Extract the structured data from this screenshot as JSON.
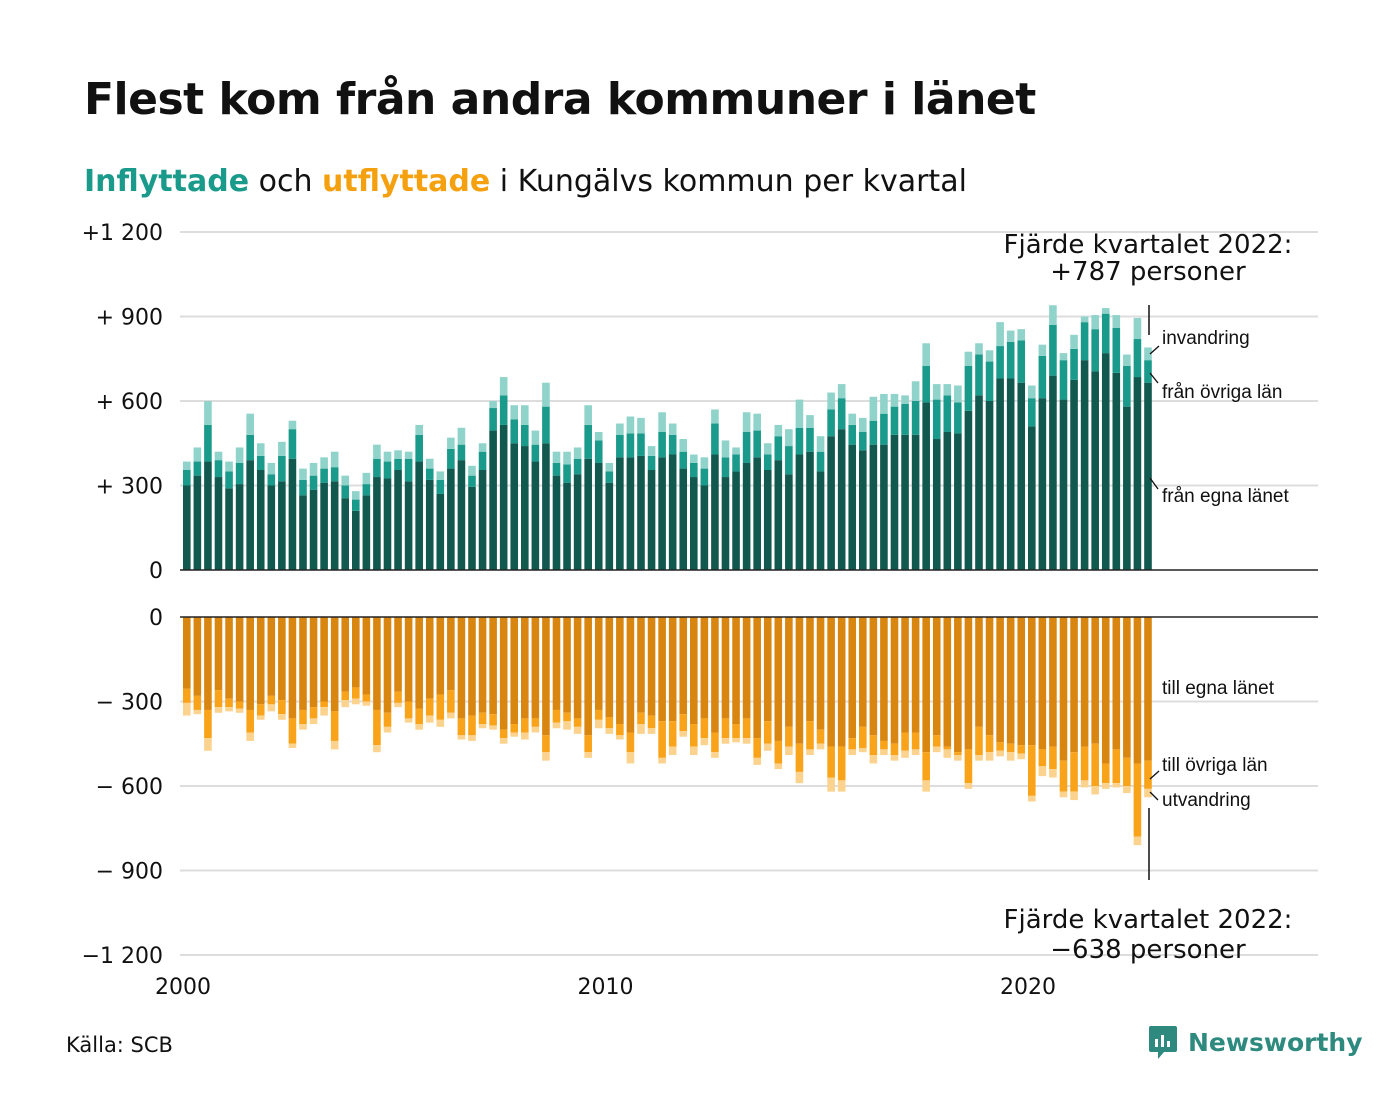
{
  "title": "Flest kom från andra kommuner i länet",
  "subtitle": {
    "in_word": "Inflyttade",
    "mid1": " och ",
    "out_word": "utflyttade",
    "rest": " i Kungälvs kommun per kvartal"
  },
  "source": "Källa: SCB",
  "logo": {
    "text": "Newsworthy",
    "icon": "newsworthy-chart-icon"
  },
  "colors": {
    "in_own": "#11584f",
    "in_other": "#1a9a8a",
    "in_immig": "#8fd3ca",
    "out_own": "#d98610",
    "out_other": "#f9a31a",
    "out_emig": "#fbd38e",
    "grid": "#dddddd",
    "axis": "#222222"
  },
  "annotations": {
    "top_line1": "Fjärde kvartalet 2022:",
    "top_line2": "+787 personer",
    "bottom_line1": "Fjärde kvartalet 2022:",
    "bottom_line2": "−638 personer"
  },
  "chart_data": {
    "type": "bar",
    "stacked": true,
    "x_ticks": [
      2000,
      2010,
      2020
    ],
    "x_tick_labels": [
      "2000",
      "2010",
      "2020"
    ],
    "x_start": 2000,
    "top_panel": {
      "y_ticks": [
        0,
        300,
        600,
        900,
        1200
      ],
      "y_tick_labels": [
        "0",
        "+  300",
        "+  600",
        "+  900",
        "+1 200"
      ],
      "ylim": [
        0,
        1200
      ],
      "series_labels": [
        "från egna länet",
        "från övriga län",
        "invandring"
      ]
    },
    "bottom_panel": {
      "y_ticks": [
        0,
        -300,
        -600,
        -900,
        -1200
      ],
      "y_tick_labels": [
        "0",
        "−  300",
        "−  600",
        "−  900",
        "−1 200"
      ],
      "ylim": [
        -1200,
        0
      ],
      "series_labels": [
        "till egna länet",
        "till övriga län",
        "utvandring"
      ]
    },
    "in_own": [
      300,
      335,
      385,
      330,
      290,
      305,
      390,
      355,
      300,
      315,
      395,
      265,
      285,
      310,
      315,
      255,
      210,
      265,
      330,
      325,
      355,
      315,
      385,
      320,
      270,
      360,
      390,
      295,
      355,
      495,
      515,
      450,
      440,
      385,
      450,
      335,
      310,
      340,
      395,
      380,
      310,
      400,
      400,
      405,
      355,
      400,
      410,
      360,
      330,
      300,
      410,
      330,
      350,
      380,
      400,
      355,
      390,
      340,
      410,
      420,
      350,
      475,
      500,
      445,
      425,
      445,
      445,
      480,
      480,
      480,
      595,
      465,
      490,
      485,
      565,
      620,
      600,
      680,
      680,
      665,
      510,
      610,
      690,
      605,
      675,
      745,
      705,
      770,
      700,
      580,
      685,
      665
    ],
    "in_other": [
      55,
      50,
      130,
      60,
      60,
      75,
      90,
      50,
      40,
      90,
      105,
      55,
      50,
      50,
      50,
      45,
      40,
      40,
      65,
      60,
      40,
      80,
      95,
      40,
      50,
      70,
      55,
      40,
      65,
      80,
      105,
      85,
      75,
      60,
      130,
      45,
      65,
      55,
      120,
      80,
      40,
      80,
      85,
      80,
      50,
      90,
      70,
      60,
      50,
      60,
      110,
      70,
      60,
      110,
      95,
      55,
      85,
      100,
      95,
      85,
      70,
      95,
      110,
      70,
      65,
      85,
      110,
      100,
      110,
      120,
      130,
      140,
      130,
      110,
      160,
      145,
      140,
      115,
      130,
      150,
      100,
      150,
      180,
      140,
      110,
      135,
      150,
      140,
      160,
      145,
      135,
      80
    ],
    "in_immig": [
      30,
      50,
      85,
      30,
      35,
      55,
      75,
      45,
      40,
      50,
      30,
      40,
      45,
      40,
      55,
      35,
      30,
      40,
      50,
      35,
      30,
      25,
      35,
      35,
      30,
      40,
      60,
      35,
      30,
      25,
      65,
      50,
      70,
      50,
      85,
      40,
      45,
      40,
      70,
      30,
      30,
      40,
      60,
      55,
      35,
      70,
      40,
      45,
      30,
      40,
      50,
      60,
      25,
      70,
      60,
      40,
      40,
      60,
      100,
      45,
      55,
      60,
      50,
      40,
      50,
      85,
      70,
      45,
      30,
      70,
      80,
      55,
      40,
      60,
      50,
      40,
      40,
      85,
      40,
      40,
      45,
      40,
      70,
      25,
      50,
      20,
      50,
      20,
      45,
      40,
      75,
      45
    ],
    "out_own": [
      -255,
      -280,
      -330,
      -260,
      -290,
      -300,
      -330,
      -310,
      -280,
      -295,
      -360,
      -330,
      -320,
      -300,
      -335,
      -265,
      -250,
      -275,
      -330,
      -340,
      -265,
      -300,
      -325,
      -290,
      -275,
      -260,
      -360,
      -350,
      -340,
      -345,
      -400,
      -380,
      -360,
      -360,
      -420,
      -330,
      -340,
      -360,
      -420,
      -330,
      -355,
      -380,
      -410,
      -340,
      -350,
      -370,
      -370,
      -345,
      -380,
      -360,
      -410,
      -360,
      -380,
      -360,
      -430,
      -370,
      -440,
      -390,
      -450,
      -370,
      -400,
      -460,
      -460,
      -430,
      -390,
      -420,
      -440,
      -450,
      -410,
      -410,
      -480,
      -420,
      -460,
      -480,
      -470,
      -390,
      -420,
      -445,
      -450,
      -455,
      -455,
      -470,
      -460,
      -510,
      -480,
      -460,
      -450,
      -520,
      -470,
      -500,
      -520,
      -510
    ],
    "out_other": [
      -50,
      -50,
      -100,
      -60,
      -30,
      -25,
      -80,
      -40,
      -30,
      -50,
      -90,
      -50,
      -40,
      -20,
      -105,
      -30,
      -40,
      -25,
      -125,
      -50,
      -40,
      -60,
      -55,
      -60,
      -90,
      -80,
      -60,
      -70,
      -40,
      -40,
      -30,
      -30,
      -50,
      -30,
      -60,
      -45,
      -30,
      -30,
      -60,
      -35,
      -40,
      -40,
      -70,
      -40,
      -45,
      -130,
      -90,
      -60,
      -80,
      -70,
      -70,
      -70,
      -50,
      -70,
      -70,
      -80,
      -80,
      -70,
      -100,
      -100,
      -50,
      -110,
      -120,
      -40,
      -75,
      -70,
      -30,
      -40,
      -65,
      -60,
      -100,
      -40,
      -10,
      -10,
      -120,
      -100,
      -60,
      -30,
      -30,
      -30,
      -180,
      -60,
      -80,
      -110,
      -140,
      -120,
      -150,
      -70,
      -120,
      -100,
      -260,
      -100
    ],
    "out_emig": [
      -45,
      -15,
      -45,
      -20,
      -15,
      -15,
      -30,
      -15,
      -25,
      -20,
      -15,
      -20,
      -20,
      -30,
      -30,
      -25,
      -20,
      -15,
      -25,
      -20,
      -15,
      -15,
      -20,
      -25,
      -25,
      -20,
      -15,
      -20,
      -15,
      -15,
      -20,
      -15,
      -25,
      -20,
      -30,
      -20,
      -30,
      -25,
      -20,
      -30,
      -20,
      -15,
      -40,
      -35,
      -20,
      -20,
      -30,
      -20,
      -30,
      -25,
      -20,
      -20,
      -15,
      -20,
      -25,
      -25,
      -20,
      -30,
      -40,
      -20,
      -20,
      -50,
      -40,
      -20,
      -15,
      -30,
      -20,
      -20,
      -25,
      -20,
      -40,
      -20,
      -30,
      -20,
      -20,
      -20,
      -30,
      -20,
      -30,
      -20,
      -20,
      -35,
      -30,
      -20,
      -30,
      -25,
      -30,
      -20,
      -15,
      -25,
      -30,
      -30
    ]
  }
}
